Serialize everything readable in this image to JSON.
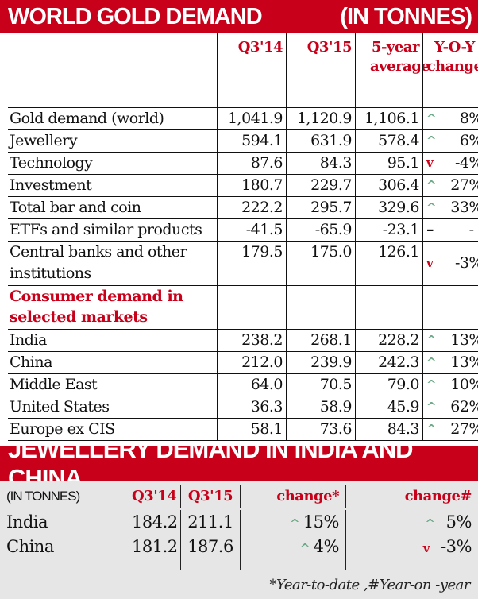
{
  "colors": {
    "accent": "#c8001a",
    "up": "#6aa884",
    "down": "#d0021b",
    "panel": "#e6e6e6"
  },
  "world": {
    "title": "WORLD GOLD DEMAND",
    "unit": "(IN TONNES)",
    "headers": [
      "Q3'14",
      "Q3'15",
      "5-year average",
      "Y-O-Y change"
    ],
    "rows": [
      {
        "label": "Gold demand (world)",
        "q314": "1,041.9",
        "q315": "1,120.9",
        "avg": "1,106.1",
        "dir": "up",
        "chg": "8%"
      },
      {
        "label": "Jewellery",
        "q314": "594.1",
        "q315": "631.9",
        "avg": "578.4",
        "dir": "up",
        "chg": "6%"
      },
      {
        "label": "Technology",
        "q314": "87.6",
        "q315": "84.3",
        "avg": "95.1",
        "dir": "down",
        "chg": "-4%"
      },
      {
        "label": "Investment",
        "q314": "180.7",
        "q315": "229.7",
        "avg": "306.4",
        "dir": "up",
        "chg": "27%"
      },
      {
        "label": "Total bar and coin",
        "q314": "222.2",
        "q315": "295.7",
        "avg": "329.6",
        "dir": "up",
        "chg": "33%"
      },
      {
        "label": "ETFs and similar products",
        "q314": "-41.5",
        "q315": "-65.9",
        "avg": "-23.1",
        "dir": "flat",
        "chg": "- -"
      },
      {
        "label": "Central banks and other institutions",
        "q314": "179.5",
        "q315": "175.0",
        "avg": "126.1",
        "dir": "down",
        "chg": "-3%"
      }
    ],
    "section_label": "Consumer demand in selected markets",
    "markets": [
      {
        "label": "India",
        "q314": "238.2",
        "q315": "268.1",
        "avg": "228.2",
        "dir": "up",
        "chg": "13%"
      },
      {
        "label": "China",
        "q314": "212.0",
        "q315": "239.9",
        "avg": "242.3",
        "dir": "up",
        "chg": "13%"
      },
      {
        "label": "Middle East",
        "q314": "64.0",
        "q315": "70.5",
        "avg": "79.0",
        "dir": "up",
        "chg": "10%"
      },
      {
        "label": "United States",
        "q314": "36.3",
        "q315": "58.9",
        "avg": "45.9",
        "dir": "up",
        "chg": "62%"
      },
      {
        "label": "Europe ex CIS",
        "q314": "58.1",
        "q315": "73.6",
        "avg": "84.3",
        "dir": "up",
        "chg": "27%"
      }
    ]
  },
  "jewellery": {
    "title": "JEWELLERY DEMAND IN INDIA AND CHINA",
    "unit": "(IN TONNES)",
    "headers": [
      "Q3'14",
      "Q3'15",
      "change*",
      "change#"
    ],
    "rows": [
      {
        "label": "India",
        "q314": "184.2",
        "q315": "211.1",
        "ytd_dir": "up",
        "ytd": "15%",
        "yoy_dir": "up",
        "yoy": "5%"
      },
      {
        "label": "China",
        "q314": "181.2",
        "q315": "187.6",
        "ytd_dir": "up",
        "ytd": "4%",
        "yoy_dir": "down",
        "yoy": "-3%"
      }
    ],
    "footnote": "*Year-to-date ,#Year-on -year"
  },
  "chart_data": [
    {
      "type": "table",
      "title": "WORLD GOLD DEMAND",
      "unit": "(IN TONNES)",
      "columns": [
        "",
        "Q3'14",
        "Q3'15",
        "5-year average",
        "Y-O-Y change"
      ],
      "rows": [
        [
          "Gold demand (world)",
          1041.9,
          1120.9,
          1106.1,
          "8%"
        ],
        [
          "Jewellery",
          594.1,
          631.9,
          578.4,
          "6%"
        ],
        [
          "Technology",
          87.6,
          84.3,
          95.1,
          "-4%"
        ],
        [
          "Investment",
          180.7,
          229.7,
          306.4,
          "27%"
        ],
        [
          "Total bar and coin",
          222.2,
          295.7,
          329.6,
          "33%"
        ],
        [
          "ETFs and similar products",
          -41.5,
          -65.9,
          -23.1,
          "- -"
        ],
        [
          "Central banks and other institutions",
          179.5,
          175.0,
          126.1,
          "-3%"
        ],
        [
          "India",
          238.2,
          268.1,
          228.2,
          "13%"
        ],
        [
          "China",
          212.0,
          239.9,
          242.3,
          "13%"
        ],
        [
          "Middle East",
          64.0,
          70.5,
          79.0,
          "10%"
        ],
        [
          "United States",
          36.3,
          58.9,
          45.9,
          "62%"
        ],
        [
          "Europe ex CIS",
          58.1,
          73.6,
          84.3,
          "27%"
        ]
      ]
    },
    {
      "type": "table",
      "title": "JEWELLERY DEMAND IN INDIA AND CHINA",
      "unit": "(IN TONNES)",
      "columns": [
        "",
        "Q3'14",
        "Q3'15",
        "change*",
        "change#"
      ],
      "rows": [
        [
          "India",
          184.2,
          211.1,
          "15%",
          "5%"
        ],
        [
          "China",
          181.2,
          187.6,
          "4%",
          "-3%"
        ]
      ]
    }
  ]
}
